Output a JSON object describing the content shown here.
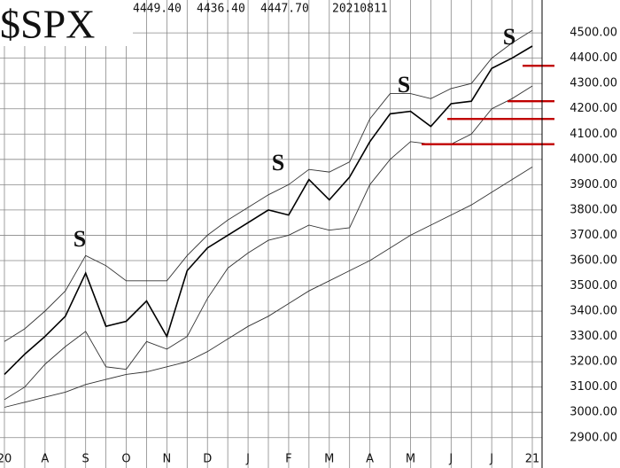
{
  "chart_data": {
    "type": "line",
    "title": "$SPX",
    "header_values": [
      "4449.40",
      "4436.40",
      "4447.70"
    ],
    "date": "20210811",
    "categories": [
      "20",
      null,
      "A",
      null,
      "S",
      null,
      "O",
      null,
      "N",
      null,
      "D",
      null,
      "J",
      null,
      "F",
      null,
      "M",
      null,
      "A",
      null,
      "M",
      null,
      "J",
      null,
      "J",
      null,
      "21"
    ],
    "series": [
      {
        "color": "#000000",
        "width": 1.6,
        "values": [
          3150,
          3230,
          3300,
          3380,
          3550,
          3340,
          3360,
          3440,
          3300,
          3560,
          3650,
          3700,
          3750,
          3800,
          3780,
          3920,
          3840,
          3930,
          4070,
          4180,
          4190,
          4130,
          4220,
          4230,
          4360,
          4400,
          4447.7
        ]
      },
      {
        "color": "#333333",
        "width": 0.9,
        "values": [
          3280,
          3330,
          3400,
          3480,
          3620,
          3580,
          3520,
          3520,
          3520,
          3620,
          3700,
          3760,
          3810,
          3860,
          3900,
          3960,
          3950,
          3990,
          4160,
          4260,
          4260,
          4240,
          4280,
          4300,
          4400,
          4460,
          4510
        ]
      },
      {
        "color": "#333333",
        "width": 0.9,
        "values": [
          3050,
          3100,
          3190,
          3260,
          3320,
          3180,
          3170,
          3280,
          3250,
          3300,
          3450,
          3570,
          3630,
          3680,
          3700,
          3740,
          3720,
          3730,
          3900,
          4000,
          4070,
          4060,
          4060,
          4100,
          4200,
          4240,
          4290
        ]
      },
      {
        "color": "#333333",
        "width": 0.9,
        "values": [
          3020,
          3040,
          3060,
          3080,
          3110,
          3130,
          3150,
          3160,
          3180,
          3200,
          3240,
          3290,
          3340,
          3380,
          3430,
          3480,
          3520,
          3560,
          3600,
          3650,
          3700,
          3740,
          3780,
          3820,
          3870,
          3920,
          3970
        ]
      }
    ],
    "support_levels": {
      "color": "#c00000",
      "values": [
        4370,
        4230,
        4160,
        4060
      ]
    },
    "annotations": [
      {
        "text": "S",
        "color": "#c00000"
      },
      {
        "text": "S",
        "color": "#c00000"
      },
      {
        "text": "S",
        "color": "#2f7fd0"
      },
      {
        "text": "S",
        "color": "#1f7a1f"
      }
    ],
    "ylim": [
      2780,
      4630
    ],
    "yticks": [
      {
        "value": 2900,
        "label": "2900.00"
      },
      {
        "value": 3000,
        "label": "3000.00"
      },
      {
        "value": 3100,
        "label": "3100.00"
      },
      {
        "value": 3200,
        "label": "3200.00"
      },
      {
        "value": 3300,
        "label": "3300.00"
      },
      {
        "value": 3400,
        "label": "3400.00"
      },
      {
        "value": 3500,
        "label": "3500.00"
      },
      {
        "value": 3600,
        "label": "3600.00"
      },
      {
        "value": 3700,
        "label": "3700.00"
      },
      {
        "value": 3800,
        "label": "3800.00"
      },
      {
        "value": 3900,
        "label": "3900.00"
      },
      {
        "value": 4000,
        "label": "4000.00"
      },
      {
        "value": 4100,
        "label": "4100.00"
      },
      {
        "value": 4200,
        "label": "4200.00"
      },
      {
        "value": 4300,
        "label": "4300.00"
      },
      {
        "value": 4400,
        "label": "4400.00"
      },
      {
        "value": 4500,
        "label": "4500.00"
      }
    ],
    "grid": true
  }
}
